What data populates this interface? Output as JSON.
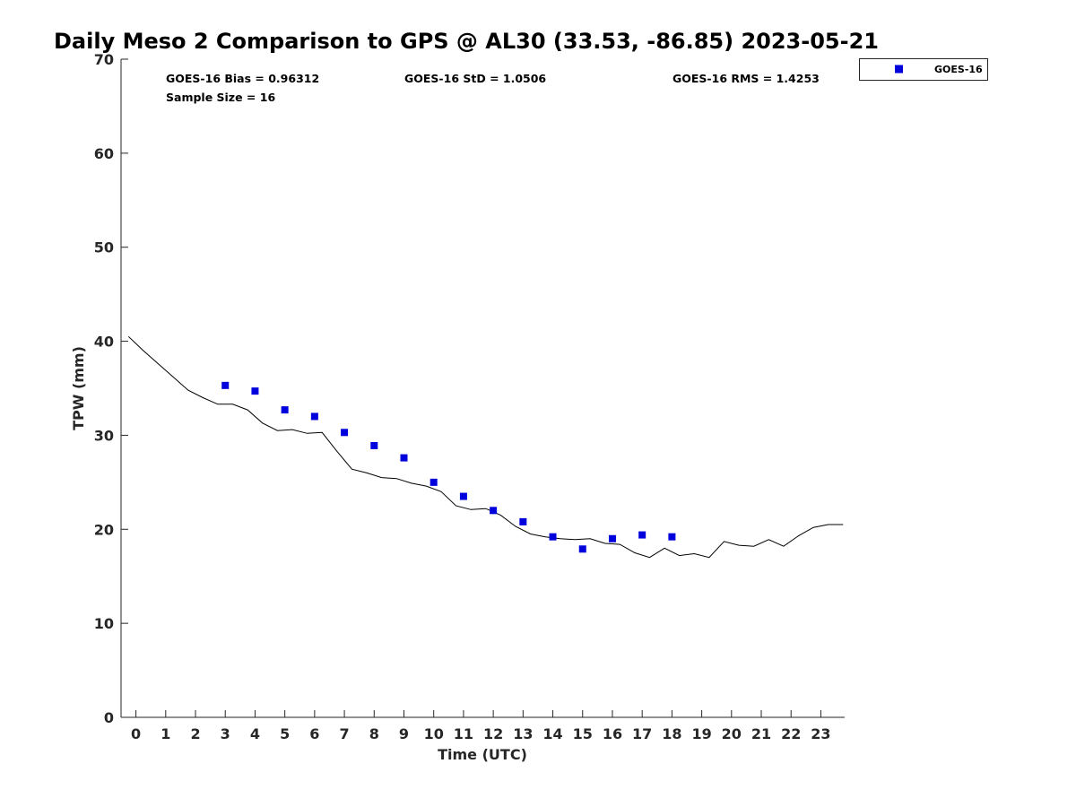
{
  "chart_data": {
    "type": "scatter",
    "title": "Daily Meso 2 Comparison to GPS @ AL30 (33.53, -86.85) 2023-05-21",
    "xlabel": "Time (UTC)",
    "ylabel": "TPW (mm)",
    "xlim": [
      -0.5,
      23.8
    ],
    "ylim": [
      0,
      70
    ],
    "xticks": [
      0,
      1,
      2,
      3,
      4,
      5,
      6,
      7,
      8,
      9,
      10,
      11,
      12,
      13,
      14,
      15,
      16,
      17,
      18,
      19,
      20,
      21,
      22,
      23
    ],
    "yticks": [
      0,
      10,
      20,
      30,
      40,
      50,
      60,
      70
    ],
    "grid": false,
    "legend_position": "top-right, outside plot",
    "stats": {
      "bias": "GOES-16 Bias = 0.96312",
      "std": "GOES-16 StD = 1.0506",
      "rms": "GOES-16 RMS = 1.4253",
      "sample": "Sample Size = 16"
    },
    "series": [
      {
        "name": "GOES-16",
        "kind": "scatter",
        "marker": "square",
        "color": "#0000dd",
        "x": [
          3,
          4,
          5,
          6,
          7,
          8,
          9,
          10,
          11,
          12,
          13,
          14,
          15,
          16,
          17,
          18
        ],
        "y": [
          35.3,
          34.7,
          32.7,
          32.0,
          30.3,
          28.9,
          27.6,
          25.0,
          23.5,
          22.0,
          20.8,
          19.2,
          17.9,
          19.0,
          19.4,
          19.2
        ]
      },
      {
        "kind": "line",
        "color": "#000000",
        "x": [
          -0.25,
          0.25,
          0.75,
          1.25,
          1.75,
          2.25,
          2.75,
          3.25,
          3.75,
          4.25,
          4.75,
          5.25,
          5.75,
          6.25,
          6.75,
          7.25,
          7.75,
          8.25,
          8.75,
          9.25,
          9.75,
          10.25,
          10.75,
          11.25,
          11.75,
          12.25,
          12.75,
          13.25,
          13.75,
          14.25,
          14.75,
          15.25,
          15.75,
          16.25,
          16.75,
          17.25,
          17.75,
          18.25,
          18.75,
          19.25,
          19.75,
          20.25,
          20.75,
          21.25,
          21.75,
          22.25,
          22.75,
          23.25,
          23.75
        ],
        "y": [
          40.5,
          39.0,
          37.6,
          36.2,
          34.8,
          34.0,
          33.3,
          33.3,
          32.7,
          31.3,
          30.5,
          30.6,
          30.2,
          30.3,
          28.3,
          26.4,
          26.0,
          25.5,
          25.4,
          24.9,
          24.6,
          24.0,
          22.5,
          22.1,
          22.2,
          21.5,
          20.3,
          19.5,
          19.2,
          19.0,
          18.9,
          19.0,
          18.5,
          18.4,
          17.5,
          17.0,
          18.0,
          17.2,
          17.4,
          17.0,
          18.7,
          18.3,
          18.2,
          18.9,
          18.2,
          19.3,
          20.2,
          20.5,
          20.5
        ]
      }
    ]
  }
}
